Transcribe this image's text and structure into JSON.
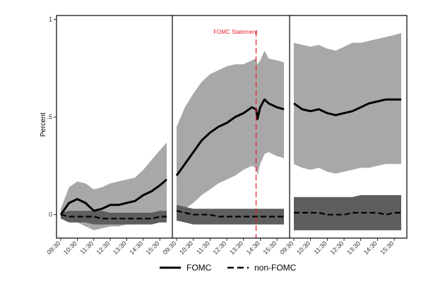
{
  "chart_data": {
    "type": "line",
    "ylabel": "Percent",
    "ylim": [
      -0.12,
      1.02
    ],
    "y_ticks": [
      {
        "value": 0,
        "label": "0"
      },
      {
        "value": 0.5,
        "label": ".5"
      },
      {
        "value": 1,
        "label": "1"
      }
    ],
    "annotation": {
      "label": "FOMC Statement",
      "panel": 1,
      "time": "14:15",
      "color": "#e8202a"
    },
    "legend": {
      "position": "bottom",
      "entries": [
        {
          "series": "FOMC",
          "label": "FOMC",
          "style": "solid"
        },
        {
          "series": "non-FOMC",
          "label": "non-FOMC",
          "style": "dashed"
        }
      ]
    },
    "colors": {
      "fomc_band": "#a8a8a8",
      "nonfomc_band": "#5e5e5e",
      "line": "#000000",
      "statement": "#e8202a"
    },
    "panels": [
      {
        "x_ticks": [
          "09:30",
          "10:30",
          "11:30",
          "12:30",
          "13:30",
          "14:30",
          "15:30"
        ],
        "x": [
          "09:30",
          "10:00",
          "10:30",
          "11:00",
          "11:30",
          "12:00",
          "12:30",
          "13:00",
          "13:30",
          "14:00",
          "14:30",
          "15:00",
          "15:30",
          "15:55"
        ],
        "series": [
          {
            "name": "FOMC",
            "values": [
              0.0,
              0.06,
              0.08,
              0.06,
              0.02,
              0.03,
              0.05,
              0.05,
              0.06,
              0.07,
              0.1,
              0.12,
              0.15,
              0.18
            ],
            "upper": [
              0.03,
              0.14,
              0.17,
              0.16,
              0.13,
              0.14,
              0.16,
              0.17,
              0.18,
              0.19,
              0.23,
              0.28,
              0.33,
              0.37
            ],
            "lower": [
              -0.02,
              -0.04,
              -0.04,
              -0.06,
              -0.08,
              -0.07,
              -0.06,
              -0.06,
              -0.05,
              -0.05,
              -0.03,
              -0.03,
              -0.02,
              -0.01
            ]
          },
          {
            "name": "non-FOMC",
            "values": [
              0.0,
              -0.01,
              -0.01,
              -0.01,
              -0.01,
              -0.02,
              -0.02,
              -0.02,
              -0.02,
              -0.02,
              -0.02,
              -0.02,
              -0.01,
              -0.01
            ],
            "upper": [
              0.01,
              0.02,
              0.02,
              0.02,
              0.02,
              0.02,
              0.01,
              0.01,
              0.01,
              0.01,
              0.01,
              0.01,
              0.02,
              0.02
            ],
            "lower": [
              -0.02,
              -0.04,
              -0.04,
              -0.04,
              -0.05,
              -0.05,
              -0.05,
              -0.05,
              -0.05,
              -0.05,
              -0.05,
              -0.05,
              -0.04,
              -0.04
            ]
          }
        ]
      },
      {
        "x_ticks": [
          "09:30",
          "10:30",
          "11:30",
          "12:30",
          "13:30",
          "14:30",
          "15:30"
        ],
        "x": [
          "09:30",
          "10:00",
          "10:30",
          "11:00",
          "11:30",
          "12:00",
          "12:30",
          "13:00",
          "13:30",
          "14:00",
          "14:15",
          "14:20",
          "14:30",
          "14:45",
          "15:00",
          "15:30",
          "15:55"
        ],
        "series": [
          {
            "name": "FOMC",
            "values": [
              0.2,
              0.26,
              0.32,
              0.38,
              0.42,
              0.45,
              0.47,
              0.5,
              0.52,
              0.55,
              0.54,
              0.49,
              0.55,
              0.59,
              0.57,
              0.55,
              0.54
            ],
            "upper": [
              0.45,
              0.55,
              0.62,
              0.68,
              0.72,
              0.74,
              0.76,
              0.77,
              0.77,
              0.79,
              0.8,
              0.77,
              0.79,
              0.84,
              0.8,
              0.79,
              0.78
            ],
            "lower": [
              0.0,
              0.03,
              0.06,
              0.1,
              0.13,
              0.16,
              0.18,
              0.2,
              0.23,
              0.25,
              0.24,
              0.2,
              0.26,
              0.31,
              0.32,
              0.3,
              0.29
            ]
          },
          {
            "name": "non-FOMC",
            "values": [
              0.02,
              0.01,
              0.0,
              0.0,
              0.0,
              -0.01,
              -0.01,
              -0.01,
              -0.01,
              -0.01,
              -0.01,
              -0.01,
              -0.01,
              -0.01,
              -0.01,
              -0.01,
              -0.01
            ],
            "upper": [
              0.05,
              0.04,
              0.03,
              0.03,
              0.03,
              0.03,
              0.03,
              0.03,
              0.03,
              0.03,
              0.03,
              0.03,
              0.03,
              0.03,
              0.03,
              0.03,
              0.03
            ],
            "lower": [
              -0.03,
              -0.04,
              -0.05,
              -0.05,
              -0.05,
              -0.05,
              -0.05,
              -0.05,
              -0.05,
              -0.05,
              -0.05,
              -0.05,
              -0.05,
              -0.05,
              -0.05,
              -0.05,
              -0.05
            ]
          }
        ]
      },
      {
        "x_ticks": [
          "09:30",
          "10:30",
          "11:30",
          "12:30",
          "13:30",
          "14:30",
          "15:30"
        ],
        "x": [
          "09:30",
          "10:00",
          "10:30",
          "11:00",
          "11:30",
          "12:00",
          "12:30",
          "13:00",
          "13:30",
          "14:00",
          "14:30",
          "15:00",
          "15:30",
          "15:55"
        ],
        "series": [
          {
            "name": "FOMC",
            "values": [
              0.57,
              0.54,
              0.53,
              0.54,
              0.52,
              0.51,
              0.52,
              0.53,
              0.55,
              0.57,
              0.58,
              0.59,
              0.59,
              0.59
            ],
            "upper": [
              0.88,
              0.87,
              0.86,
              0.87,
              0.85,
              0.84,
              0.86,
              0.88,
              0.88,
              0.89,
              0.9,
              0.91,
              0.92,
              0.93
            ],
            "lower": [
              0.26,
              0.24,
              0.23,
              0.24,
              0.22,
              0.21,
              0.22,
              0.23,
              0.24,
              0.24,
              0.25,
              0.26,
              0.26,
              0.26
            ]
          },
          {
            "name": "non-FOMC",
            "values": [
              0.01,
              0.01,
              0.01,
              0.01,
              0.0,
              0.0,
              0.0,
              0.01,
              0.01,
              0.01,
              0.01,
              0.0,
              0.01,
              0.01
            ],
            "upper": [
              0.09,
              0.09,
              0.09,
              0.09,
              0.09,
              0.09,
              0.09,
              0.09,
              0.1,
              0.1,
              0.1,
              0.1,
              0.1,
              0.1
            ],
            "lower": [
              -0.08,
              -0.08,
              -0.08,
              -0.08,
              -0.08,
              -0.08,
              -0.08,
              -0.08,
              -0.08,
              -0.08,
              -0.08,
              -0.08,
              -0.08,
              -0.08
            ]
          }
        ]
      }
    ]
  }
}
